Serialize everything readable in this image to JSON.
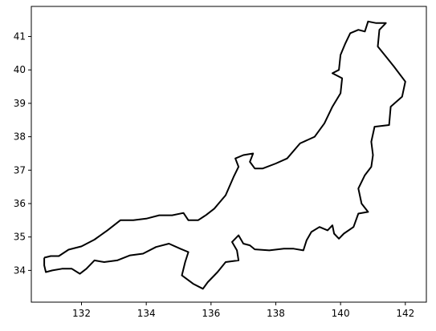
{
  "chart_data": {
    "type": "line",
    "title": "",
    "xlabel": "",
    "ylabel": "",
    "xlim": [
      130.45,
      142.65
    ],
    "ylim": [
      33.05,
      41.9
    ],
    "grid": false,
    "x_ticks": [
      132,
      134,
      136,
      138,
      140,
      142
    ],
    "x_tick_labels": [
      "132",
      "134",
      "136",
      "138",
      "140",
      "142"
    ],
    "y_ticks": [
      34,
      35,
      36,
      37,
      38,
      39,
      40,
      41
    ],
    "y_tick_labels": [
      "34",
      "35",
      "36",
      "37",
      "38",
      "39",
      "40",
      "41"
    ],
    "series": [
      {
        "color": "#000000",
        "points": [
          [
            130.85,
            34.38
          ],
          [
            131.05,
            34.43
          ],
          [
            131.3,
            34.43
          ],
          [
            131.6,
            34.62
          ],
          [
            132.0,
            34.72
          ],
          [
            132.4,
            34.92
          ],
          [
            132.8,
            35.2
          ],
          [
            133.2,
            35.5
          ],
          [
            133.6,
            35.5
          ],
          [
            134.0,
            35.55
          ],
          [
            134.4,
            35.65
          ],
          [
            134.8,
            35.65
          ],
          [
            135.15,
            35.72
          ],
          [
            135.3,
            35.5
          ],
          [
            135.6,
            35.5
          ],
          [
            135.85,
            35.66
          ],
          [
            136.1,
            35.85
          ],
          [
            136.45,
            36.25
          ],
          [
            136.7,
            36.8
          ],
          [
            136.85,
            37.1
          ],
          [
            136.75,
            37.35
          ],
          [
            137.0,
            37.45
          ],
          [
            137.3,
            37.5
          ],
          [
            137.2,
            37.25
          ],
          [
            137.35,
            37.05
          ],
          [
            137.6,
            37.05
          ],
          [
            138.0,
            37.2
          ],
          [
            138.35,
            37.35
          ],
          [
            138.75,
            37.8
          ],
          [
            139.2,
            38.0
          ],
          [
            139.5,
            38.4
          ],
          [
            139.75,
            38.9
          ],
          [
            140.0,
            39.3
          ],
          [
            140.05,
            39.75
          ],
          [
            139.75,
            39.9
          ],
          [
            139.95,
            40.0
          ],
          [
            140.0,
            40.45
          ],
          [
            140.15,
            40.8
          ],
          [
            140.3,
            41.1
          ],
          [
            140.55,
            41.2
          ],
          [
            140.75,
            41.15
          ],
          [
            140.85,
            41.45
          ],
          [
            141.1,
            41.4
          ],
          [
            141.4,
            41.4
          ],
          [
            141.2,
            41.2
          ],
          [
            141.15,
            40.7
          ],
          [
            141.4,
            40.4
          ],
          [
            141.65,
            40.1
          ],
          [
            142.0,
            39.65
          ],
          [
            141.9,
            39.2
          ],
          [
            141.55,
            38.9
          ],
          [
            141.5,
            38.35
          ],
          [
            141.05,
            38.3
          ],
          [
            140.95,
            37.85
          ],
          [
            141.0,
            37.45
          ],
          [
            140.95,
            37.1
          ],
          [
            140.75,
            36.85
          ],
          [
            140.55,
            36.45
          ],
          [
            140.65,
            36.0
          ],
          [
            140.85,
            35.75
          ],
          [
            140.55,
            35.7
          ],
          [
            140.4,
            35.3
          ],
          [
            140.1,
            35.1
          ],
          [
            139.95,
            34.95
          ],
          [
            139.8,
            35.1
          ],
          [
            139.75,
            35.35
          ],
          [
            139.6,
            35.2
          ],
          [
            139.35,
            35.3
          ],
          [
            139.1,
            35.15
          ],
          [
            138.95,
            34.9
          ],
          [
            138.85,
            34.6
          ],
          [
            138.55,
            34.65
          ],
          [
            138.25,
            34.65
          ],
          [
            137.8,
            34.6
          ],
          [
            137.35,
            34.63
          ],
          [
            137.2,
            34.75
          ],
          [
            137.0,
            34.8
          ],
          [
            136.85,
            35.05
          ],
          [
            136.65,
            34.85
          ],
          [
            136.8,
            34.6
          ],
          [
            136.85,
            34.3
          ],
          [
            136.45,
            34.25
          ],
          [
            136.2,
            33.95
          ],
          [
            135.9,
            33.65
          ],
          [
            135.75,
            33.45
          ],
          [
            135.45,
            33.6
          ],
          [
            135.1,
            33.85
          ],
          [
            135.2,
            34.25
          ],
          [
            135.3,
            34.55
          ],
          [
            135.05,
            34.65
          ],
          [
            134.7,
            34.8
          ],
          [
            134.3,
            34.7
          ],
          [
            133.9,
            34.5
          ],
          [
            133.5,
            34.45
          ],
          [
            133.1,
            34.3
          ],
          [
            132.7,
            34.25
          ],
          [
            132.4,
            34.3
          ],
          [
            132.15,
            34.05
          ],
          [
            131.95,
            33.9
          ],
          [
            131.7,
            34.05
          ],
          [
            131.4,
            34.05
          ],
          [
            131.1,
            34.0
          ],
          [
            130.9,
            33.95
          ],
          [
            130.85,
            34.15
          ],
          [
            130.85,
            34.38
          ]
        ]
      }
    ]
  }
}
